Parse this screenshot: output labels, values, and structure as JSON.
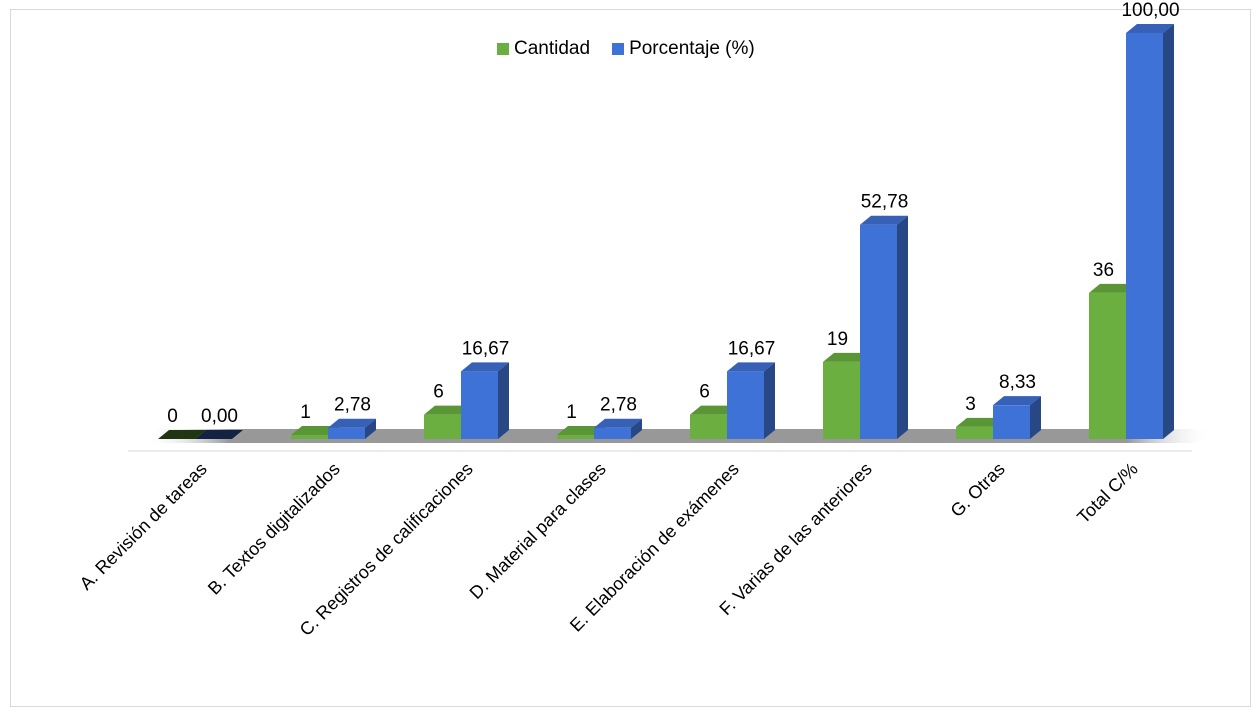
{
  "chart_data": {
    "type": "bar",
    "categories": [
      "A. Revisión de tareas",
      "B. Textos digitalizados",
      "C. Registros de calificaciones",
      "D. Material para clases",
      "E. Elaboración de exámenes",
      "F. Varias de las anteriores",
      "G. Otras",
      "Total C/%"
    ],
    "series": [
      {
        "name": "Cantidad",
        "values": [
          0,
          1,
          6,
          1,
          6,
          19,
          3,
          36
        ],
        "labels": [
          "0",
          "1",
          "6",
          "1",
          "6",
          "19",
          "3",
          "36"
        ],
        "color": "#6aaf3f"
      },
      {
        "name": "Porcentaje (%)",
        "values": [
          0.0,
          2.78,
          16.67,
          2.78,
          16.67,
          52.78,
          8.33,
          100.0
        ],
        "labels": [
          "0,00",
          "2,78",
          "16,67",
          "2,78",
          "16,67",
          "52,78",
          "8,33",
          "100,00"
        ],
        "color": "#3f72d6"
      }
    ],
    "ylim": [
      0,
      100
    ],
    "grid": false,
    "legend": "top-center",
    "style": "3d"
  }
}
